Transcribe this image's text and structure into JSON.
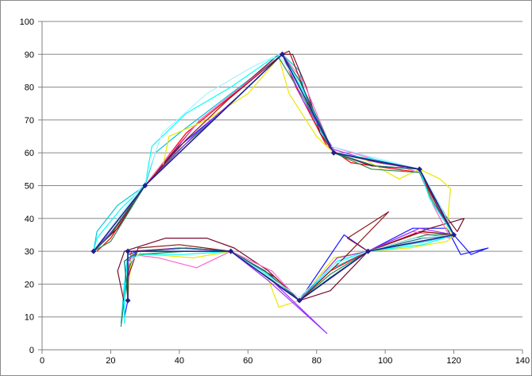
{
  "chart_data": {
    "type": "scatter",
    "title": "",
    "xlabel": "",
    "ylabel": "",
    "xlim": [
      0,
      140
    ],
    "ylim": [
      0,
      100
    ],
    "x_ticks": [
      0,
      20,
      40,
      60,
      80,
      100,
      120,
      140
    ],
    "y_ticks": [
      0,
      10,
      20,
      30,
      40,
      50,
      60,
      70,
      80,
      90,
      100
    ],
    "grid": "horizontal",
    "legend": "none",
    "reference": {
      "name": "",
      "color": "#1f1f8f",
      "marker": "diamond",
      "segments": [
        [
          [
            15,
            30
          ],
          [
            30,
            50
          ],
          [
            70,
            90
          ],
          [
            85,
            60
          ],
          [
            110,
            55
          ],
          [
            120,
            35
          ],
          [
            95,
            30
          ],
          [
            75,
            15
          ],
          [
            55,
            30
          ],
          [
            25,
            30
          ],
          [
            25,
            15
          ]
        ]
      ]
    },
    "traces": [
      {
        "color": "#1a1aff",
        "points": [
          [
            15,
            30
          ],
          [
            18,
            33
          ],
          [
            24,
            41
          ],
          [
            30,
            50
          ],
          [
            40,
            62
          ],
          [
            55,
            75
          ],
          [
            70,
            90
          ],
          [
            76,
            78
          ],
          [
            85,
            60
          ],
          [
            98,
            57
          ],
          [
            110,
            55
          ],
          [
            115,
            45
          ],
          [
            120,
            35
          ],
          [
            125,
            29
          ],
          [
            130,
            31
          ],
          [
            122,
            29
          ],
          [
            118,
            37
          ],
          [
            108,
            37
          ],
          [
            95,
            30
          ],
          [
            88,
            35
          ],
          [
            75,
            15
          ],
          [
            65,
            24
          ],
          [
            55,
            30
          ],
          [
            42,
            31
          ],
          [
            28,
            30
          ],
          [
            25,
            29
          ],
          [
            25,
            15
          ],
          [
            24,
            10
          ]
        ]
      },
      {
        "color": "#00c8d8",
        "points": [
          [
            15,
            30
          ],
          [
            16,
            36
          ],
          [
            22,
            44
          ],
          [
            30,
            50
          ],
          [
            33,
            60
          ],
          [
            40,
            66
          ],
          [
            55,
            78
          ],
          [
            70,
            90
          ],
          [
            75,
            85
          ],
          [
            78,
            72
          ],
          [
            85,
            60
          ],
          [
            95,
            58
          ],
          [
            110,
            55
          ],
          [
            114,
            46
          ],
          [
            118,
            38
          ],
          [
            120,
            35
          ],
          [
            112,
            33
          ],
          [
            95,
            30
          ],
          [
            85,
            25
          ],
          [
            75,
            15
          ],
          [
            68,
            22
          ],
          [
            55,
            30
          ],
          [
            40,
            30
          ],
          [
            30,
            29
          ],
          [
            25,
            29
          ],
          [
            24,
            20
          ],
          [
            23,
            8
          ]
        ]
      },
      {
        "color": "#ff0000",
        "points": [
          [
            16,
            30
          ],
          [
            20,
            34
          ],
          [
            30,
            50
          ],
          [
            42,
            66
          ],
          [
            56,
            78
          ],
          [
            70,
            90
          ],
          [
            74,
            80
          ],
          [
            83,
            62
          ],
          [
            90,
            57
          ],
          [
            110,
            54
          ],
          [
            116,
            42
          ],
          [
            120,
            35
          ],
          [
            110,
            36
          ],
          [
            95,
            30
          ],
          [
            84,
            24
          ],
          [
            75,
            15
          ],
          [
            66,
            22
          ],
          [
            55,
            30
          ],
          [
            40,
            31
          ],
          [
            26,
            30
          ],
          [
            25,
            22
          ],
          [
            25,
            15
          ]
        ]
      },
      {
        "color": "#7a0a2a",
        "points": [
          [
            16,
            31
          ],
          [
            22,
            37
          ],
          [
            30,
            50
          ],
          [
            46,
            70
          ],
          [
            58,
            80
          ],
          [
            69,
            90
          ],
          [
            73,
            90
          ],
          [
            77,
            80
          ],
          [
            81,
            66
          ],
          [
            85,
            60
          ],
          [
            96,
            56
          ],
          [
            110,
            55
          ],
          [
            116,
            43
          ],
          [
            121,
            36
          ],
          [
            123,
            40
          ],
          [
            113,
            37
          ],
          [
            95,
            30
          ],
          [
            84,
            18
          ],
          [
            75,
            15
          ],
          [
            66,
            24
          ],
          [
            56,
            31
          ],
          [
            48,
            34
          ],
          [
            36,
            34
          ],
          [
            24,
            30
          ],
          [
            22,
            24
          ],
          [
            24,
            14
          ]
        ]
      },
      {
        "color": "#ff66cc",
        "points": [
          [
            15,
            30
          ],
          [
            21,
            38
          ],
          [
            30,
            50
          ],
          [
            36,
            58
          ],
          [
            46,
            70
          ],
          [
            58,
            80
          ],
          [
            70,
            90
          ],
          [
            76,
            82
          ],
          [
            84,
            62
          ],
          [
            97,
            58
          ],
          [
            110,
            54
          ],
          [
            114,
            44
          ],
          [
            119,
            34
          ],
          [
            108,
            36
          ],
          [
            95,
            30
          ],
          [
            86,
            28
          ],
          [
            75,
            15
          ],
          [
            67,
            24
          ],
          [
            55,
            30
          ],
          [
            45,
            25
          ],
          [
            34,
            28
          ],
          [
            26,
            29
          ],
          [
            25,
            20
          ],
          [
            25,
            15
          ]
        ]
      },
      {
        "color": "#e8e800",
        "points": [
          [
            15,
            30
          ],
          [
            22,
            38
          ],
          [
            30,
            50
          ],
          [
            35,
            55
          ],
          [
            37,
            65
          ],
          [
            48,
            70
          ],
          [
            60,
            78
          ],
          [
            69,
            89
          ],
          [
            72,
            78
          ],
          [
            80,
            65
          ],
          [
            85,
            60
          ],
          [
            94,
            58
          ],
          [
            104,
            52
          ],
          [
            110,
            55
          ],
          [
            116,
            52
          ],
          [
            119,
            49
          ],
          [
            118,
            37
          ],
          [
            120,
            35
          ],
          [
            118,
            33
          ],
          [
            107,
            31
          ],
          [
            95,
            30
          ],
          [
            85,
            28
          ],
          [
            75,
            15
          ],
          [
            69,
            13
          ],
          [
            65,
            24
          ],
          [
            55,
            30
          ],
          [
            44,
            28
          ],
          [
            32,
            29
          ],
          [
            26,
            29
          ],
          [
            25,
            15
          ]
        ]
      },
      {
        "color": "#2e8b57",
        "points": [
          [
            15,
            30
          ],
          [
            20,
            33
          ],
          [
            30,
            50
          ],
          [
            40,
            61
          ],
          [
            52,
            72
          ],
          [
            62,
            82
          ],
          [
            69,
            89
          ],
          [
            76,
            77
          ],
          [
            85,
            60
          ],
          [
            96,
            55
          ],
          [
            110,
            54
          ],
          [
            114,
            45
          ],
          [
            120,
            35
          ],
          [
            112,
            35
          ],
          [
            95,
            30
          ],
          [
            84,
            23
          ],
          [
            75,
            15
          ],
          [
            66,
            22
          ],
          [
            55,
            30
          ],
          [
            42,
            30
          ],
          [
            27,
            29
          ],
          [
            25,
            24
          ],
          [
            23,
            7
          ]
        ]
      },
      {
        "color": "#9b30ff",
        "points": [
          [
            15,
            30
          ],
          [
            22,
            38
          ],
          [
            30,
            50
          ],
          [
            44,
            65
          ],
          [
            58,
            78
          ],
          [
            70,
            90
          ],
          [
            76,
            76
          ],
          [
            85,
            61
          ],
          [
            98,
            57
          ],
          [
            110,
            55
          ],
          [
            116,
            42
          ],
          [
            120,
            35
          ],
          [
            110,
            37
          ],
          [
            95,
            30
          ],
          [
            86,
            28
          ],
          [
            75,
            15
          ],
          [
            68,
            20
          ],
          [
            83,
            5
          ],
          [
            66,
            21
          ],
          [
            55,
            30
          ],
          [
            40,
            31
          ],
          [
            28,
            30
          ],
          [
            25,
            27
          ],
          [
            25,
            15
          ]
        ]
      },
      {
        "color": "#00ffff",
        "points": [
          [
            15,
            30
          ],
          [
            16,
            34
          ],
          [
            23,
            43
          ],
          [
            30,
            50
          ],
          [
            32,
            62
          ],
          [
            42,
            72
          ],
          [
            55,
            80
          ],
          [
            66,
            88
          ],
          [
            70,
            90
          ],
          [
            76,
            79
          ],
          [
            85,
            60
          ],
          [
            97,
            58
          ],
          [
            110,
            55
          ],
          [
            113,
            46
          ],
          [
            118,
            38
          ],
          [
            120,
            35
          ],
          [
            111,
            32
          ],
          [
            95,
            30
          ],
          [
            86,
            27
          ],
          [
            75,
            15
          ],
          [
            67,
            22
          ],
          [
            55,
            30
          ],
          [
            41,
            29
          ],
          [
            30,
            29
          ],
          [
            25,
            28
          ],
          [
            24,
            18
          ],
          [
            24,
            8
          ]
        ]
      },
      {
        "color": "#8b1a1a",
        "points": [
          [
            15,
            30
          ],
          [
            20,
            35
          ],
          [
            30,
            50
          ],
          [
            42,
            64
          ],
          [
            54,
            76
          ],
          [
            70,
            90
          ],
          [
            72,
            91
          ],
          [
            79,
            72
          ],
          [
            85,
            60
          ],
          [
            99,
            57
          ],
          [
            110,
            55
          ],
          [
            115,
            44
          ],
          [
            120,
            35
          ],
          [
            111,
            36
          ],
          [
            95,
            30
          ],
          [
            89,
            34
          ],
          [
            101,
            42
          ],
          [
            88,
            28
          ],
          [
            75,
            15
          ],
          [
            68,
            22
          ],
          [
            55,
            30
          ],
          [
            40,
            32
          ],
          [
            28,
            31
          ],
          [
            25,
            22
          ],
          [
            25,
            15
          ]
        ]
      },
      {
        "color": "#0a6e6e",
        "points": [
          [
            15,
            30
          ],
          [
            19,
            34
          ],
          [
            30,
            50
          ],
          [
            44,
            64
          ],
          [
            58,
            78
          ],
          [
            70,
            90
          ],
          [
            75,
            82
          ],
          [
            85,
            60
          ],
          [
            97,
            56
          ],
          [
            110,
            55
          ],
          [
            117,
            42
          ],
          [
            120,
            35
          ],
          [
            111,
            34
          ],
          [
            95,
            30
          ],
          [
            84,
            22
          ],
          [
            75,
            15
          ],
          [
            65,
            24
          ],
          [
            55,
            30
          ],
          [
            42,
            31
          ],
          [
            28,
            30
          ],
          [
            24,
            27
          ],
          [
            25,
            15
          ]
        ]
      },
      {
        "color": "#aaf2ff",
        "points": [
          [
            15,
            30
          ],
          [
            22,
            40
          ],
          [
            30,
            51
          ],
          [
            35,
            66
          ],
          [
            48,
            78
          ],
          [
            61,
            86
          ],
          [
            69,
            90
          ],
          [
            74,
            82
          ],
          [
            84,
            62
          ],
          [
            110,
            55
          ],
          [
            116,
            44
          ],
          [
            120,
            35
          ],
          [
            109,
            34
          ],
          [
            95,
            30
          ],
          [
            85,
            26
          ],
          [
            75,
            16
          ],
          [
            65,
            23
          ],
          [
            55,
            30
          ],
          [
            40,
            30
          ],
          [
            29,
            30
          ],
          [
            25,
            26
          ],
          [
            25,
            16
          ]
        ]
      }
    ]
  }
}
